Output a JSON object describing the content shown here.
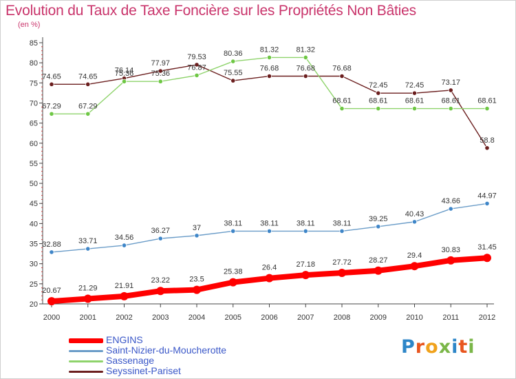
{
  "title": "Evolution du Taux de Taxe Foncière sur les Propriétés Non Bâties",
  "unit_label": "(en %)",
  "logo": {
    "text": "Proxiti",
    "letter_colors": [
      "#2d86c8",
      "#e8561f",
      "#f0a21c",
      "#7ab648",
      "#2d86c8",
      "#e8561f",
      "#7ab648"
    ]
  },
  "chart_data": {
    "type": "line",
    "x": [
      "2000",
      "2001",
      "2002",
      "2003",
      "2004",
      "2005",
      "2006",
      "2007",
      "2008",
      "2009",
      "2010",
      "2011",
      "2012"
    ],
    "ylim": [
      20,
      85
    ],
    "yticks": [
      20,
      25,
      30,
      35,
      40,
      45,
      50,
      55,
      60,
      65,
      70,
      75,
      80,
      85
    ],
    "grid": false,
    "legend_position": "bottom-left",
    "series": [
      {
        "name": "ENGINS",
        "color": "#ff0000",
        "marker_color": "#ff0000",
        "values": [
          20.67,
          21.29,
          21.91,
          23.22,
          23.5,
          25.38,
          26.4,
          27.18,
          27.72,
          28.27,
          29.4,
          30.83,
          31.45
        ],
        "labels": [
          "20.67",
          "21.29",
          "21.91",
          "23.22",
          "23.5",
          "25.38",
          "26.4",
          "27.18",
          "27.72",
          "28.27",
          "29.4",
          "30.83",
          "31.45"
        ]
      },
      {
        "name": "Saint-Nizier-du-Moucherotte",
        "color": "#6a9cc8",
        "marker_color": "#3f86c8",
        "values": [
          32.88,
          33.71,
          34.56,
          36.27,
          37,
          38.11,
          38.11,
          38.11,
          38.11,
          39.25,
          40.43,
          43.66,
          44.97
        ],
        "labels": [
          "32.88",
          "33.71",
          "34.56",
          "36.27",
          "37",
          "38.11",
          "38.11",
          "38.11",
          "38.11",
          "39.25",
          "40.43",
          "43.66",
          "44.97"
        ]
      },
      {
        "name": "Sassenage",
        "color": "#8ed36b",
        "marker_color": "#6ec744",
        "values": [
          67.29,
          67.29,
          75.36,
          75.36,
          76.87,
          80.36,
          81.32,
          81.32,
          68.61,
          68.61,
          68.61,
          68.61,
          68.61
        ],
        "labels": [
          "67.29",
          "67.29",
          "75.36",
          "75.36",
          "76.87",
          "80.36",
          "81.32",
          "81.32",
          "68.61",
          "68.61",
          "68.61",
          "68.61",
          "68.61"
        ]
      },
      {
        "name": "Seyssinet-Pariset",
        "color": "#6b1e1e",
        "marker_color": "#6b1e1e",
        "values": [
          74.65,
          74.65,
          76.14,
          77.97,
          79.53,
          75.55,
          76.68,
          76.68,
          76.68,
          72.45,
          72.45,
          73.17,
          58.8
        ],
        "labels": [
          "74.65",
          "74.65",
          "76.14",
          "77.97",
          "79.53",
          "75.55",
          "76.68",
          "76.68",
          "76.68",
          "72.45",
          "72.45",
          "73.17",
          "58.8"
        ]
      }
    ]
  }
}
